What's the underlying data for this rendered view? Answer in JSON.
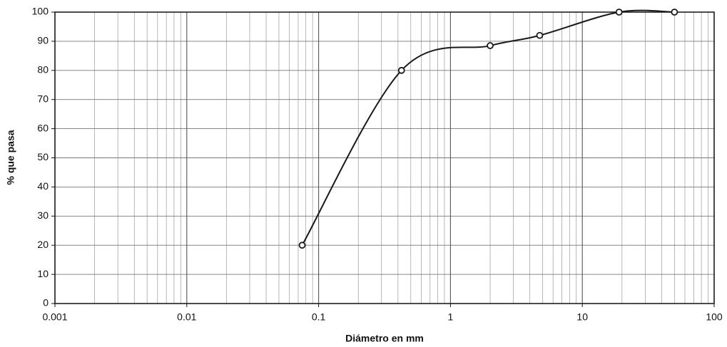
{
  "chart_data": {
    "type": "line",
    "x_label": "Diámetro en mm",
    "y_label": "% que pasa",
    "x": [
      0.075,
      0.425,
      2.0,
      4.75,
      19,
      50
    ],
    "series": [
      {
        "color": "#1a1a1a",
        "values": [
          20,
          80,
          88.5,
          92,
          100,
          100
        ]
      }
    ],
    "x_scale": "log",
    "xlim": [
      0.001,
      100
    ],
    "xticks": [
      0.001,
      0.01,
      0.1,
      1,
      10,
      100
    ],
    "ylim": [
      0,
      100
    ],
    "yticks": [
      0,
      10,
      20,
      30,
      40,
      50,
      60,
      70,
      80,
      90,
      100
    ],
    "grid": true,
    "minor_grid": true,
    "smooth": true,
    "markers": true
  }
}
